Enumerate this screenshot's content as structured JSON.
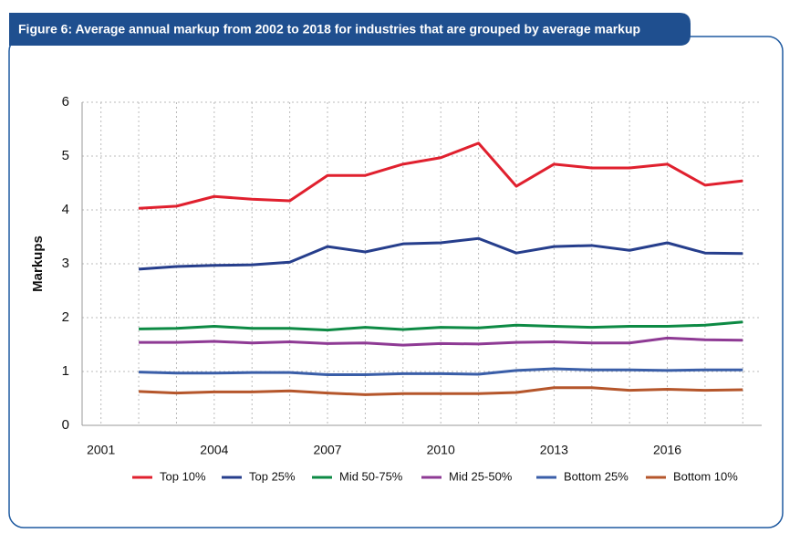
{
  "chart_data": {
    "type": "line",
    "title": "Figure 6: Average annual markup from 2002 to 2018 for industries that are grouped by average markup",
    "y_label": "Markups",
    "x": [
      2002,
      2003,
      2004,
      2005,
      2006,
      2007,
      2008,
      2009,
      2010,
      2011,
      2012,
      2013,
      2014,
      2015,
      2016,
      2017,
      2018
    ],
    "series": [
      {
        "name": "Top 10%",
        "color": "#e0202e",
        "values": [
          4.03,
          4.07,
          4.25,
          4.2,
          4.17,
          4.64,
          4.64,
          4.85,
          4.97,
          5.24,
          4.44,
          4.85,
          4.78,
          4.78,
          4.85,
          4.46,
          4.54
        ]
      },
      {
        "name": "Top 25%",
        "color": "#263e8c",
        "values": [
          2.9,
          2.95,
          2.97,
          2.98,
          3.03,
          3.32,
          3.22,
          3.37,
          3.39,
          3.47,
          3.2,
          3.32,
          3.34,
          3.25,
          3.39,
          3.2,
          3.19
        ]
      },
      {
        "name": "Mid 50-75%",
        "color": "#0d8a44",
        "values": [
          1.79,
          1.8,
          1.84,
          1.8,
          1.8,
          1.77,
          1.82,
          1.78,
          1.82,
          1.81,
          1.86,
          1.84,
          1.82,
          1.84,
          1.84,
          1.86,
          1.92
        ]
      },
      {
        "name": "Mid 25-50%",
        "color": "#8e3a94",
        "values": [
          1.54,
          1.54,
          1.56,
          1.53,
          1.55,
          1.52,
          1.53,
          1.49,
          1.52,
          1.51,
          1.54,
          1.55,
          1.53,
          1.53,
          1.62,
          1.59,
          1.58
        ]
      },
      {
        "name": "Bottom 25%",
        "color": "#3a5ea8",
        "values": [
          0.99,
          0.97,
          0.97,
          0.98,
          0.98,
          0.94,
          0.94,
          0.96,
          0.96,
          0.95,
          1.02,
          1.05,
          1.03,
          1.03,
          1.02,
          1.03,
          1.03
        ]
      },
      {
        "name": "Bottom 10%",
        "color": "#b5562b",
        "values": [
          0.63,
          0.6,
          0.62,
          0.62,
          0.64,
          0.6,
          0.57,
          0.59,
          0.59,
          0.59,
          0.61,
          0.7,
          0.7,
          0.65,
          0.67,
          0.65,
          0.66
        ]
      }
    ],
    "xlim": [
      2000.5,
      2018.5
    ],
    "xticks": [
      2001,
      2002,
      2003,
      2004,
      2005,
      2006,
      2007,
      2008,
      2009,
      2010,
      2011,
      2012,
      2013,
      2014,
      2015,
      2016,
      2017,
      2018
    ],
    "xtick_label_step": 3,
    "ylim": [
      0,
      6
    ],
    "yticks": [
      0,
      1,
      2,
      3,
      4,
      5,
      6
    ],
    "grid": true,
    "legend": "bottom"
  }
}
